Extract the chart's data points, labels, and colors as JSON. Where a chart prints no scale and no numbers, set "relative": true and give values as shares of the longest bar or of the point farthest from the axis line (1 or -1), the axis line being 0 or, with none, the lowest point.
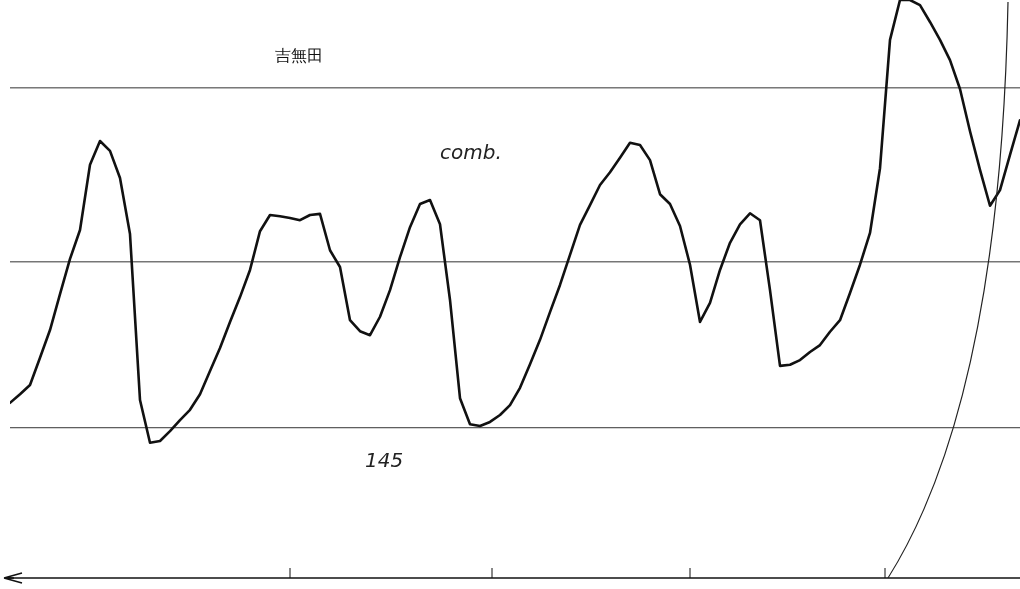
{
  "chart_data": {
    "type": "line",
    "title": "吉無田",
    "annotations": [
      "comb.",
      "145"
    ],
    "relative": true,
    "grid": false,
    "legend": false,
    "line_style": "solid",
    "categories": [
      null,
      null,
      null,
      null,
      null,
      null,
      null,
      null,
      null,
      null,
      null,
      null,
      null,
      null,
      null,
      null,
      null,
      null,
      null,
      null,
      null,
      null,
      null,
      null,
      null,
      null,
      null,
      null,
      null,
      null,
      null,
      null,
      null,
      null,
      null,
      null,
      null,
      null,
      null,
      null,
      null,
      null,
      null,
      null,
      null,
      null,
      null,
      null,
      null,
      null,
      null,
      null,
      null,
      null,
      null,
      null,
      null,
      null,
      null,
      null,
      null,
      null,
      null,
      null,
      null,
      null,
      null,
      null,
      null,
      null,
      null,
      null,
      null,
      null,
      null,
      null,
      null,
      null,
      null,
      null,
      null,
      null,
      null,
      null,
      null,
      null,
      null,
      null,
      null,
      null,
      null,
      null,
      null,
      null,
      null,
      null,
      null,
      null,
      null,
      null,
      null,
      null
    ],
    "ref_lines": [
      {
        "axis": "y",
        "value": 0.848,
        "color": "#333333"
      },
      {
        "axis": "y",
        "value": 0.547,
        "color": "#333333"
      },
      {
        "axis": "y",
        "value": 0.26,
        "color": "#333333"
      }
    ],
    "series": [
      {
        "color": "#111111",
        "values": [
          0.303,
          0.318,
          0.334,
          0.381,
          0.429,
          0.491,
          0.552,
          0.602,
          0.715,
          0.756,
          0.739,
          0.692,
          0.595,
          0.308,
          0.234,
          0.237,
          0.254,
          0.273,
          0.291,
          0.318,
          0.358,
          0.398,
          0.443,
          0.486,
          0.533,
          0.6,
          0.628,
          0.626,
          0.623,
          0.619,
          0.628,
          0.63,
          0.567,
          0.538,
          0.446,
          0.427,
          0.42,
          0.452,
          0.498,
          0.555,
          0.607,
          0.647,
          0.654,
          0.612,
          0.481,
          0.311,
          0.266,
          0.263,
          0.27,
          0.282,
          0.299,
          0.329,
          0.37,
          0.412,
          0.46,
          0.507,
          0.559,
          0.611,
          0.645,
          0.68,
          0.702,
          0.727,
          0.753,
          0.749,
          0.723,
          0.664,
          0.647,
          0.609,
          0.542,
          0.443,
          0.476,
          0.533,
          0.58,
          0.612,
          0.631,
          0.619,
          0.498,
          0.367,
          0.369,
          0.377,
          0.391,
          0.403,
          0.426,
          0.446,
          0.493,
          0.542,
          0.597,
          0.709,
          0.931,
          1,
          1,
          0.991,
          0.962,
          0.931,
          0.896,
          0.846,
          0.773,
          0.706,
          0.644,
          0.671,
          0.732,
          0.792
        ]
      }
    ]
  }
}
